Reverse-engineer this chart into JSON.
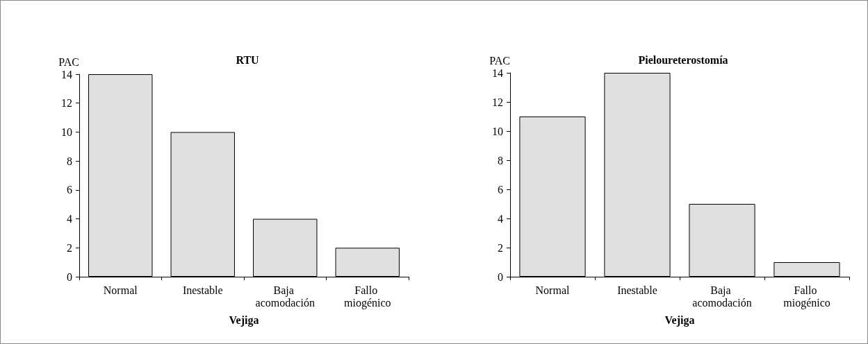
{
  "chart_data": [
    {
      "type": "bar",
      "title": "RTU",
      "xlabel": "Vejiga",
      "ylabel": "PAC",
      "categories": [
        "Normal",
        "Inestable",
        "Baja acomodación",
        "Fallo miogénico"
      ],
      "values": [
        14,
        10,
        4,
        2
      ],
      "color": "#e0e0e0",
      "ylim": [
        0,
        14
      ],
      "yticks": [
        0,
        2,
        4,
        6,
        8,
        10,
        12,
        14
      ],
      "grid": false
    },
    {
      "type": "bar",
      "title": "Pieloureterostomía",
      "xlabel": "Vejiga",
      "ylabel": "PAC",
      "categories": [
        "Normal",
        "Inestable",
        "Baja acomodación",
        "Fallo miogénico"
      ],
      "values": [
        11,
        14,
        5,
        1
      ],
      "color": "#e0e0e0",
      "ylim": [
        0,
        14
      ],
      "yticks": [
        0,
        2,
        4,
        6,
        8,
        10,
        12,
        14
      ],
      "grid": false
    }
  ]
}
